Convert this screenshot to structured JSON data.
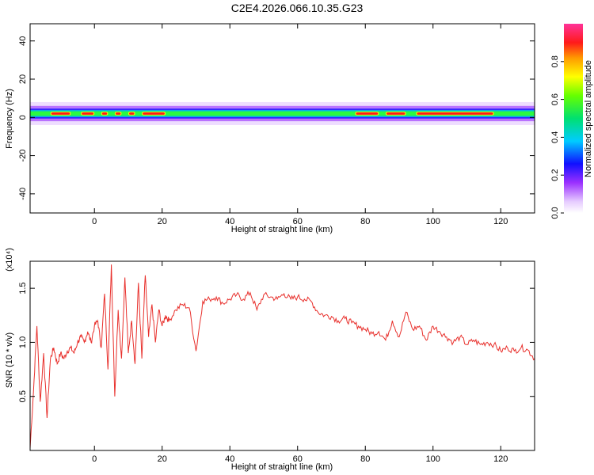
{
  "title": "C2E4.2026.066.10.35.G23",
  "chart_data": [
    {
      "type": "heatmap",
      "xlabel": "Height of straight line (km)",
      "ylabel": "Frequency (Hz)",
      "xlim": [
        -19,
        130
      ],
      "ylim": [
        -50,
        49
      ],
      "xticks": [
        0,
        20,
        40,
        60,
        80,
        100,
        120
      ],
      "yticks": [
        -40,
        -20,
        0,
        20,
        40
      ],
      "colorbar": {
        "label": "Normalized spectral amplitude",
        "range": [
          0,
          1
        ],
        "ticks": [
          0.0,
          0.2,
          0.4,
          0.6,
          0.8
        ]
      },
      "ridge": {
        "center_frequency_hz": 2,
        "peak_segments": [
          {
            "x": [
              -13,
              -7
            ]
          },
          {
            "x": [
              -4,
              0
            ]
          },
          {
            "x": [
              2,
              4
            ]
          },
          {
            "x": [
              6,
              8
            ]
          },
          {
            "x": [
              10,
              12
            ]
          },
          {
            "x": [
              14,
              21
            ]
          },
          {
            "x": [
              77,
              84
            ]
          },
          {
            "x": [
              86,
              92
            ]
          },
          {
            "x": [
              95,
              118
            ]
          }
        ]
      }
    },
    {
      "type": "line",
      "xlabel": "Height of straight line (km)",
      "ylabel": "SNR (10 * v/v)",
      "multiplier": "(x10⁴)",
      "xlim": [
        -19,
        130
      ],
      "ylim": [
        0,
        1.75
      ],
      "xticks": [
        0,
        20,
        40,
        60,
        80,
        100,
        120
      ],
      "yticks": [
        0.5,
        1.0,
        1.5
      ],
      "ytick_labels": [
        "0.5",
        "1.0",
        "1.5"
      ],
      "series": [
        {
          "color": "#e8302c",
          "x": [
            -19,
            -18,
            -17,
            -16,
            -15,
            -14,
            -13,
            -12,
            -11,
            -10,
            -9,
            -8,
            -7,
            -6,
            -5,
            -4,
            -3,
            -2,
            -1,
            0,
            1,
            2,
            3,
            4,
            5,
            6,
            7,
            8,
            9,
            10,
            11,
            12,
            13,
            14,
            15,
            16,
            17,
            18,
            19,
            20,
            21,
            22,
            24,
            26,
            28,
            30,
            32,
            34,
            36,
            38,
            40,
            42,
            44,
            46,
            48,
            50,
            52,
            54,
            56,
            58,
            60,
            62,
            64,
            66,
            68,
            70,
            72,
            74,
            76,
            78,
            80,
            82,
            84,
            86,
            88,
            90,
            92,
            94,
            96,
            98,
            100,
            102,
            104,
            106,
            108,
            110,
            112,
            114,
            116,
            118,
            120,
            122,
            124,
            126,
            128,
            130
          ],
          "y": [
            0.02,
            0.55,
            1.15,
            0.45,
            0.9,
            0.3,
            0.85,
            0.95,
            0.8,
            0.9,
            0.85,
            0.92,
            0.95,
            0.9,
            1.0,
            1.05,
            1.0,
            1.1,
            1.0,
            1.15,
            1.2,
            0.95,
            1.45,
            0.75,
            1.72,
            0.5,
            1.3,
            0.85,
            1.6,
            0.9,
            1.2,
            0.8,
            1.55,
            0.85,
            1.62,
            1.05,
            1.35,
            1.0,
            1.3,
            1.15,
            1.25,
            1.2,
            1.3,
            1.35,
            1.32,
            0.92,
            1.38,
            1.4,
            1.42,
            1.36,
            1.4,
            1.44,
            1.4,
            1.46,
            1.3,
            1.44,
            1.42,
            1.4,
            1.45,
            1.4,
            1.42,
            1.4,
            1.38,
            1.28,
            1.25,
            1.24,
            1.2,
            1.22,
            1.18,
            1.15,
            1.12,
            1.08,
            1.1,
            1.02,
            1.2,
            1.05,
            1.28,
            1.12,
            1.15,
            1.02,
            1.15,
            1.1,
            1.05,
            1.0,
            1.05,
            0.98,
            1.02,
            0.98,
            1.0,
            0.98,
            0.92,
            0.95,
            0.92,
            0.95,
            0.93,
            0.85
          ]
        }
      ]
    }
  ]
}
